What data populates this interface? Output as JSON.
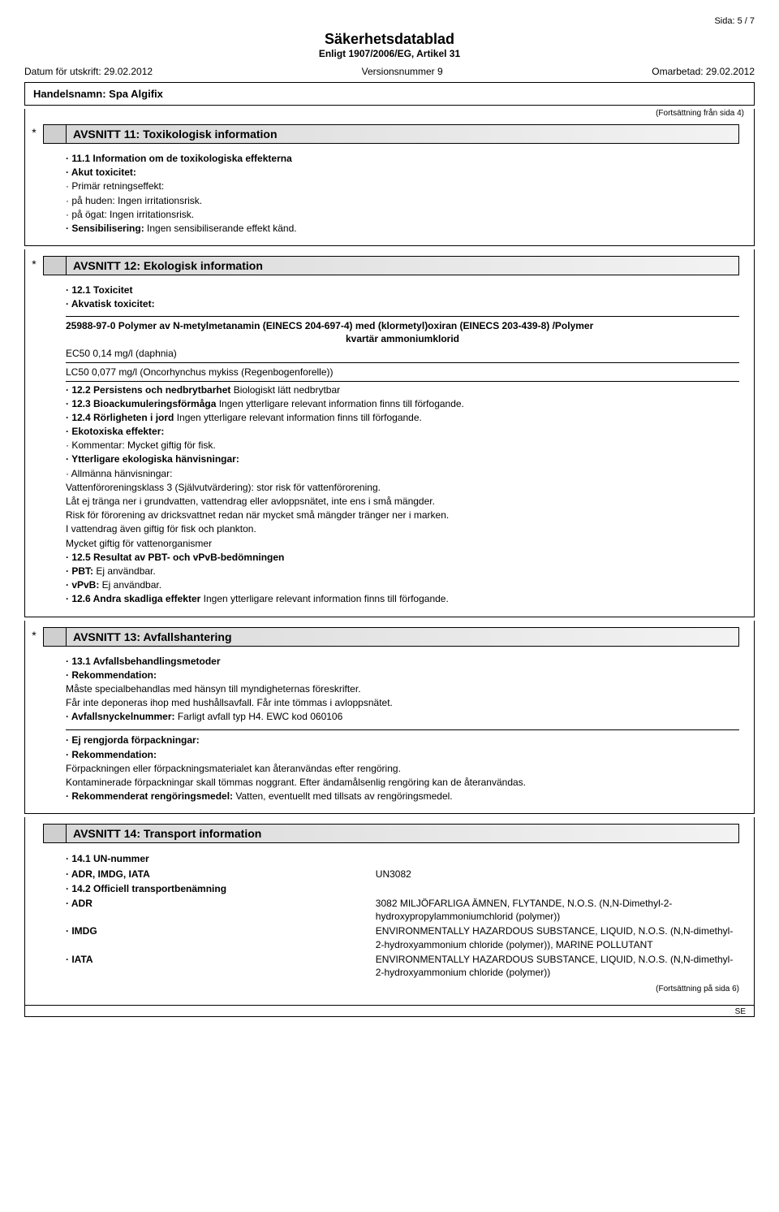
{
  "page_label": "Sida: 5 / 7",
  "doc_title": "Säkerhetsdatablad",
  "doc_subtitle": "Enligt 1907/2006/EG, Artikel 31",
  "meta": {
    "print_date_label": "Datum för utskrift: 29.02.2012",
    "version_label": "Versionsnummer 9",
    "revised_label": "Omarbetad: 29.02.2012"
  },
  "trade_name": "Handelsnamn: Spa Algifix",
  "cont_from": "(Fortsättning från sida 4)",
  "sec11": {
    "title": "AVSNITT 11: Toxikologisk information",
    "lines": [
      {
        "b": "· 11.1 Information om de toxikologiska effekterna"
      },
      {
        "b": "· Akut toxicitet:"
      },
      {
        "t": "· Primär retningseffekt:"
      },
      {
        "t": "· på huden: Ingen irritationsrisk."
      },
      {
        "t": "· på ögat: Ingen irritationsrisk."
      },
      {
        "mix": [
          {
            "b": "· Sensibilisering:"
          },
          {
            "t": " Ingen sensibiliserande effekt känd."
          }
        ]
      }
    ]
  },
  "sec12": {
    "title": "AVSNITT 12: Ekologisk information",
    "head_lines": [
      {
        "b": "· 12.1 Toxicitet"
      },
      {
        "b": "· Akvatisk toxicitet:"
      }
    ],
    "box": {
      "head": "25988-97-0 Polymer av N-metylmetanamin (EINECS 204-697-4) med (klormetyl)oxiran (EINECS 203-439-8) /Polymer",
      "mid": "kvartär ammoniumklorid",
      "ec50": "EC50 0,14 mg/l (daphnia)",
      "lc50": "LC50 0,077 mg/l (Oncorhynchus mykiss (Regenbogenforelle))"
    },
    "lines": [
      {
        "mix": [
          {
            "b": "· 12.2 Persistens och nedbrytbarhet"
          },
          {
            "t": " Biologiskt lätt nedbrytbar"
          }
        ]
      },
      {
        "mix": [
          {
            "b": "· 12.3 Bioackumuleringsförmåga"
          },
          {
            "t": " Ingen ytterligare relevant information finns till förfogande."
          }
        ]
      },
      {
        "mix": [
          {
            "b": "· 12.4 Rörligheten i jord"
          },
          {
            "t": " Ingen ytterligare relevant information finns till förfogande."
          }
        ]
      },
      {
        "b": "· Ekotoxiska effekter:"
      },
      {
        "t": "· Kommentar: Mycket giftig för fisk."
      },
      {
        "b": "· Ytterligare ekologiska hänvisningar:"
      },
      {
        "t": "· Allmänna hänvisningar:"
      },
      {
        "t": "  Vattenföroreningsklass 3 (Självutvärdering): stor risk för vattenförorening."
      },
      {
        "t": "  Låt ej tränga ner i grundvatten, vattendrag eller avloppsnätet, inte ens i små mängder."
      },
      {
        "t": "  Risk för förorening av dricksvattnet redan när mycket små mängder tränger ner i marken."
      },
      {
        "t": "  I vattendrag även giftig för fisk och plankton."
      },
      {
        "t": "  Mycket giftig för vattenorganismer"
      },
      {
        "b": "· 12.5 Resultat av PBT- och vPvB-bedömningen"
      },
      {
        "mix": [
          {
            "b": "· PBT:"
          },
          {
            "t": " Ej användbar."
          }
        ]
      },
      {
        "mix": [
          {
            "b": "· vPvB:"
          },
          {
            "t": " Ej användbar."
          }
        ]
      },
      {
        "mix": [
          {
            "b": "· 12.6 Andra skadliga effekter"
          },
          {
            "t": " Ingen ytterligare relevant information finns till förfogande."
          }
        ]
      }
    ]
  },
  "sec13": {
    "title": "AVSNITT 13: Avfallshantering",
    "lines": [
      {
        "b": "· 13.1 Avfallsbehandlingsmetoder"
      },
      {
        "b": "· Rekommendation:"
      },
      {
        "t": "  Måste specialbehandlas med hänsyn till myndigheternas föreskrifter."
      },
      {
        "t": "  Får inte deponeras ihop med hushållsavfall. Får inte tömmas i avloppsnätet."
      },
      {
        "mix": [
          {
            "b": "· Avfallsnyckelnummer:"
          },
          {
            "t": " Farligt avfall typ H4. EWC kod 060106"
          }
        ]
      }
    ],
    "box_lines": [
      {
        "b": "· Ej rengjorda förpackningar:"
      },
      {
        "b": "· Rekommendation:"
      },
      {
        "t": "  Förpackningen eller förpackningsmaterialet kan återanvändas efter rengöring."
      },
      {
        "t": "  Kontaminerade förpackningar skall tömmas noggrant. Efter ändamålsenlig rengöring kan de återanvändas."
      },
      {
        "mix": [
          {
            "b": "· Rekommenderat rengöringsmedel:"
          },
          {
            "t": " Vatten, eventuellt med tillsats av rengöringsmedel."
          }
        ]
      }
    ]
  },
  "sec14": {
    "title": "AVSNITT 14: Transport information",
    "rows": [
      {
        "l_b": "· 14.1 UN-nummer",
        "r": ""
      },
      {
        "l_b": "· ADR, IMDG, IATA",
        "r": "UN3082"
      },
      {
        "l_b": "· 14.2 Officiell transportbenämning",
        "r": ""
      },
      {
        "l_b": "· ADR",
        "r": "3082 MILJÖFARLIGA ÄMNEN, FLYTANDE, N.O.S. (N,N-Dimethyl-2-hydroxypropylammoniumchlorid (polymer))"
      },
      {
        "l_b": "· IMDG",
        "r": "ENVIRONMENTALLY HAZARDOUS SUBSTANCE, LIQUID, N.O.S. (N,N-dimethyl-2-hydroxyammonium chloride (polymer)), MARINE POLLUTANT"
      },
      {
        "l_b": "· IATA",
        "r": "ENVIRONMENTALLY HAZARDOUS SUBSTANCE, LIQUID, N.O.S. (N,N-dimethyl-2-hydroxyammonium chloride (polymer))"
      }
    ]
  },
  "cont_next": "(Fortsättning på sida 6)",
  "footer_code": "SE"
}
